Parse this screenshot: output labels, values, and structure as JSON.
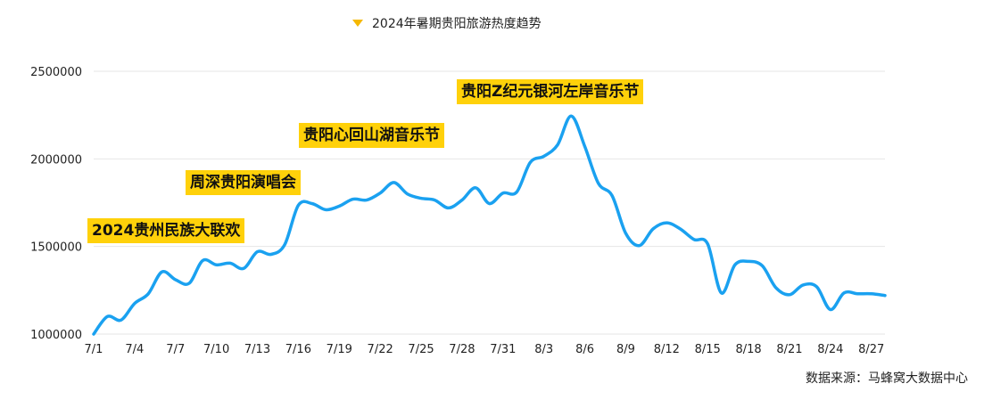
{
  "chart_data": {
    "type": "line",
    "title": "2024年暑期贵阳旅游热度趋势",
    "series": [
      {
        "name": "2024年暑期贵阳旅游热度趋势",
        "color": "#1aa1f0",
        "x": [
          "7/1",
          "7/2",
          "7/3",
          "7/4",
          "7/5",
          "7/6",
          "7/7",
          "7/8",
          "7/9",
          "7/10",
          "7/11",
          "7/12",
          "7/13",
          "7/14",
          "7/15",
          "7/16",
          "7/17",
          "7/18",
          "7/19",
          "7/20",
          "7/21",
          "7/22",
          "7/23",
          "7/24",
          "7/25",
          "7/26",
          "7/27",
          "7/28",
          "7/29",
          "7/30",
          "7/31",
          "8/1",
          "8/2",
          "8/3",
          "8/4",
          "8/5",
          "8/6",
          "8/7",
          "8/8",
          "8/9",
          "8/10",
          "8/11",
          "8/12",
          "8/13",
          "8/14",
          "8/15",
          "8/16",
          "8/17",
          "8/18",
          "8/19",
          "8/20",
          "8/21",
          "8/22",
          "8/23",
          "8/24",
          "8/25",
          "8/26",
          "8/27",
          "8/28"
        ],
        "values": [
          1000000,
          1100000,
          1080000,
          1175000,
          1230000,
          1355000,
          1310000,
          1290000,
          1420000,
          1395000,
          1405000,
          1375000,
          1470000,
          1455000,
          1510000,
          1735000,
          1745000,
          1710000,
          1730000,
          1770000,
          1765000,
          1805000,
          1865000,
          1800000,
          1775000,
          1765000,
          1720000,
          1765000,
          1835000,
          1745000,
          1805000,
          1810000,
          1980000,
          2015000,
          2080000,
          2245000,
          2070000,
          1860000,
          1790000,
          1575000,
          1505000,
          1600000,
          1635000,
          1600000,
          1540000,
          1515000,
          1235000,
          1395000,
          1415000,
          1390000,
          1265000,
          1225000,
          1280000,
          1270000,
          1140000,
          1235000,
          1230000,
          1230000,
          1220000
        ]
      }
    ],
    "x_ticks": [
      "7/1",
      "7/4",
      "7/7",
      "7/10",
      "7/13",
      "7/16",
      "7/19",
      "7/22",
      "7/25",
      "7/28",
      "7/31",
      "8/3",
      "8/6",
      "8/9",
      "8/12",
      "8/15",
      "8/18",
      "8/21",
      "8/24",
      "8/27"
    ],
    "y_ticks": [
      "1000000",
      "1500000",
      "2000000",
      "2500000"
    ],
    "ylim": [
      1000000,
      2500000
    ],
    "grid": true,
    "legend_position": "top-center",
    "annotations": [
      {
        "text": "2024贵州民族大联欢",
        "x": "7/1"
      },
      {
        "text": "周深贵阳演唱会",
        "x": "7/10"
      },
      {
        "text": "贵阳心回山湖音乐节",
        "x": "7/22"
      },
      {
        "text": "贵阳Z纪元银河左岸音乐节",
        "x": "8/3"
      }
    ],
    "source": "数据来源：马蜂窝大数据中心"
  }
}
